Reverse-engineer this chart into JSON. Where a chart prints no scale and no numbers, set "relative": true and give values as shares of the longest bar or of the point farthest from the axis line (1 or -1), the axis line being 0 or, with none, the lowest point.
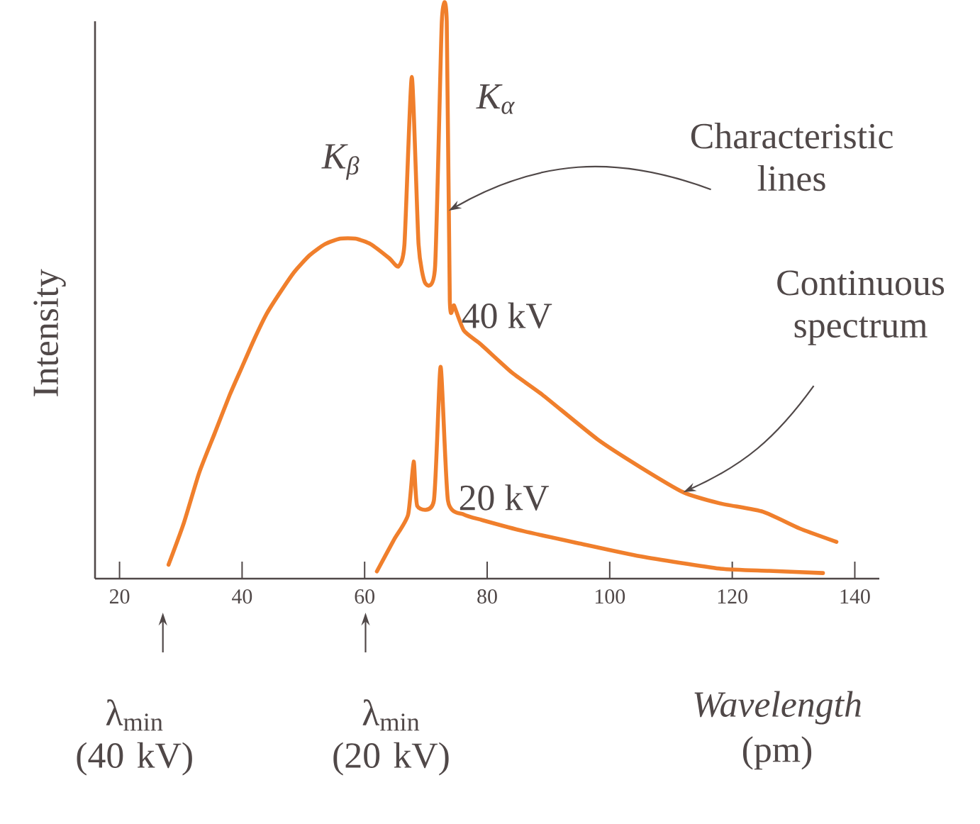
{
  "chart_data": {
    "type": "line",
    "relative": true,
    "xlabel": "*Wavelength* (pm)",
    "ylabel": "Intensity",
    "xlim": [
      16,
      144
    ],
    "xticks": [
      20,
      40,
      60,
      80,
      100,
      120,
      140
    ],
    "series": [
      {
        "name": "40 kV",
        "color": "#f07f2c",
        "x": [
          28,
          30.5,
          33,
          35.5,
          38,
          40,
          42,
          44,
          46,
          48.5,
          51,
          53.5,
          56,
          58.5,
          61,
          64,
          65.5,
          66.5,
          67.7,
          68.8,
          69.9,
          71.5,
          72.6,
          73.4,
          73.9,
          74.6,
          76.2,
          79,
          84,
          89,
          98,
          105,
          112,
          118,
          125,
          131,
          137
        ],
        "values": [
          0.025,
          0.1,
          0.19,
          0.26,
          0.33,
          0.38,
          0.43,
          0.475,
          0.51,
          0.55,
          0.58,
          0.6,
          0.61,
          0.61,
          0.6,
          0.575,
          0.56,
          0.6,
          0.9,
          0.6,
          0.53,
          0.56,
          1.0,
          1.0,
          0.5,
          0.49,
          0.445,
          0.42,
          0.37,
          0.33,
          0.25,
          0.2,
          0.155,
          0.135,
          0.12,
          0.09,
          0.066
        ]
      },
      {
        "name": "20 kV",
        "color": "#f07f2c",
        "x": [
          62,
          64.8,
          67.1,
          68,
          68.6,
          71.3,
          72.4,
          73.6,
          76.2,
          79.2,
          86,
          94.7,
          105,
          117.9,
          126,
          134.8
        ],
        "values": [
          0.013,
          0.07,
          0.115,
          0.21,
          0.13,
          0.14,
          0.38,
          0.14,
          0.115,
          0.105,
          0.085,
          0.064,
          0.04,
          0.018,
          0.014,
          0.01
        ]
      }
    ],
    "annotations": [
      "K$_{β}$",
      "K$_{α}$",
      {
        "text": "Characteristic lines",
        "x": 73.7,
        "y": 0.66
      },
      {
        "text": "Continuous spectrum",
        "x": 112,
        "y": 0.155
      },
      "λ$_{min}$ (40 kV)",
      "λ$_{min}$ (20 kV)"
    ]
  }
}
